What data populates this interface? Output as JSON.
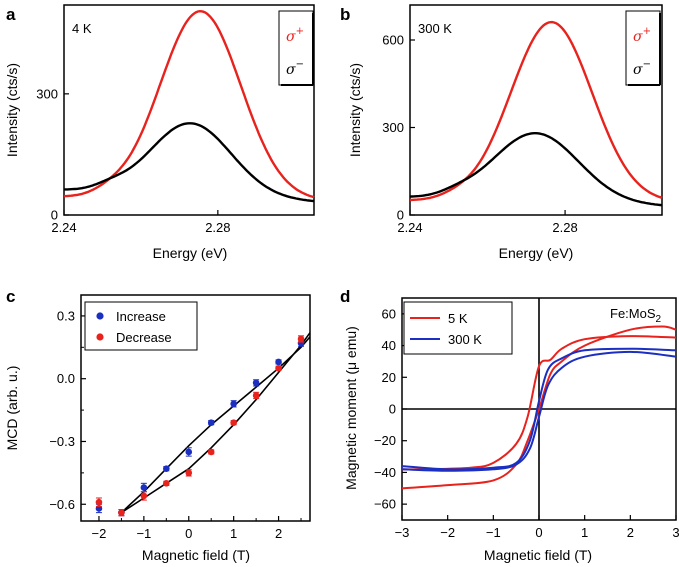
{
  "panels": {
    "a": "a",
    "b": "b",
    "c": "c",
    "d": "d"
  },
  "colors": {
    "red": "#e8221d",
    "black": "#000000",
    "blue": "#1b2fc1"
  },
  "chart_data": [
    {
      "id": "a",
      "type": "line",
      "annotation": "4 K",
      "xlabel": "Energy (eV)",
      "ylabel": "Intensity (cts/s)",
      "xlim": [
        2.24,
        2.305
      ],
      "ylim": [
        0,
        520
      ],
      "xticks": [
        2.24,
        2.28
      ],
      "xtick_labels": [
        "2.24",
        "2.28"
      ],
      "yticks": [
        0,
        300
      ],
      "ytick_labels": [
        "0",
        "300"
      ],
      "legend": [
        {
          "name": "σ+",
          "base": "σ",
          "sup": "+",
          "color": "#e8221d"
        },
        {
          "name": "σ−",
          "base": "σ",
          "sup": "−",
          "color": "#000000"
        }
      ],
      "series": [
        {
          "name": "σ+",
          "color": "#e8221d",
          "peak": 2.2755,
          "amplitude": 465,
          "sigma": 0.0105,
          "baseline": 45,
          "base_slope": -300
        },
        {
          "name": "σ−",
          "color": "#000000",
          "peak": 2.273,
          "amplitude": 180,
          "sigma": 0.0105,
          "baseline": 62,
          "base_slope": -900
        }
      ]
    },
    {
      "id": "b",
      "type": "line",
      "annotation": "300 K",
      "xlabel": "Energy (eV)",
      "ylabel": "Intensity (cts/s)",
      "xlim": [
        2.24,
        2.305
      ],
      "ylim": [
        0,
        720
      ],
      "xticks": [
        2.24,
        2.28
      ],
      "xtick_labels": [
        "2.24",
        "2.28"
      ],
      "yticks": [
        0,
        300,
        600
      ],
      "ytick_labels": [
        "0",
        "300",
        "600"
      ],
      "legend": [
        {
          "name": "σ+",
          "base": "σ",
          "sup": "+",
          "color": "#e8221d"
        },
        {
          "name": "σ−",
          "base": "σ",
          "sup": "−",
          "color": "#000000"
        }
      ],
      "series": [
        {
          "name": "σ+",
          "color": "#e8221d",
          "peak": 2.2765,
          "amplitude": 615,
          "sigma": 0.0105,
          "baseline": 50,
          "base_slope": -200
        },
        {
          "name": "σ−",
          "color": "#000000",
          "peak": 2.2725,
          "amplitude": 235,
          "sigma": 0.011,
          "baseline": 60,
          "base_slope": -900
        }
      ]
    },
    {
      "id": "c",
      "type": "scatter",
      "xlabel": "Magnetic field (T)",
      "ylabel": "MCD (arb. u.)",
      "xlim": [
        -2.4,
        2.7
      ],
      "ylim": [
        -0.68,
        0.4
      ],
      "xticks": [
        -2,
        -1,
        0,
        1,
        2
      ],
      "xtick_labels": [
        "−2",
        "−1",
        "0",
        "1",
        "2"
      ],
      "yticks": [
        -0.6,
        -0.3,
        0.0,
        0.3
      ],
      "ytick_labels": [
        "−0.6",
        "−0.3",
        "0.0",
        "0.3"
      ],
      "legend": [
        {
          "name": "Increase",
          "color": "#1b2fc1"
        },
        {
          "name": "Decrease",
          "color": "#e8221d"
        }
      ],
      "series": [
        {
          "name": "Increase",
          "color": "#1b2fc1",
          "x": [
            -2,
            -1.5,
            -1,
            -0.5,
            0,
            0.5,
            1,
            1.5,
            2,
            2.5
          ],
          "y": [
            -0.62,
            -0.64,
            -0.52,
            -0.43,
            -0.35,
            -0.21,
            -0.12,
            -0.02,
            0.08,
            0.17
          ],
          "err": [
            0.02,
            0.015,
            0.02,
            0.01,
            0.02,
            0.01,
            0.015,
            0.015,
            0.01,
            0.015
          ]
        },
        {
          "name": "Decrease",
          "color": "#e8221d",
          "x": [
            -2,
            -1.5,
            -1,
            -0.5,
            0,
            0.5,
            1,
            1.5,
            2,
            2.5
          ],
          "y": [
            -0.59,
            -0.64,
            -0.56,
            -0.5,
            -0.45,
            -0.35,
            -0.21,
            -0.08,
            0.05,
            0.19
          ],
          "err": [
            0.02,
            0.015,
            0.02,
            0.01,
            0.015,
            0.01,
            0.01,
            0.015,
            0.01,
            0.015
          ]
        }
      ],
      "fit_curves": [
        {
          "x": [
            -1.5,
            -1,
            -0.5,
            0,
            0.5,
            1,
            1.5,
            2,
            2.5,
            2.7
          ],
          "y": [
            -0.64,
            -0.54,
            -0.43,
            -0.32,
            -0.22,
            -0.13,
            -0.04,
            0.05,
            0.15,
            0.2
          ]
        },
        {
          "x": [
            -1.5,
            -1,
            -0.5,
            0,
            0.5,
            1,
            1.5,
            2,
            2.5,
            2.7
          ],
          "y": [
            -0.64,
            -0.57,
            -0.5,
            -0.43,
            -0.33,
            -0.22,
            -0.1,
            0.03,
            0.16,
            0.22
          ]
        }
      ]
    },
    {
      "id": "d",
      "type": "line",
      "annotation": "Fe:MoS",
      "annotation_sub": "2",
      "xlabel": "Magnetic field (T)",
      "ylabel": "Magnetic moment (μ emu)",
      "xlim": [
        -3,
        3
      ],
      "ylim": [
        -70,
        70
      ],
      "xticks": [
        -3,
        -2,
        -1,
        0,
        1,
        2,
        3
      ],
      "xtick_labels": [
        "−3",
        "−2",
        "−1",
        "0",
        "1",
        "2",
        "3"
      ],
      "yticks": [
        -60,
        -40,
        -20,
        0,
        20,
        40,
        60
      ],
      "ytick_labels": [
        "−60",
        "−40",
        "−20",
        "0",
        "20",
        "40",
        "60"
      ],
      "legend": [
        {
          "name": "5 K",
          "color": "#e8221d"
        },
        {
          "name": "300 K",
          "color": "#1b2fc1"
        }
      ],
      "series": [
        {
          "name": "5 K",
          "color": "#e8221d",
          "upper": {
            "x": [
              -3,
              -2.5,
              -1.5,
              -1,
              -0.5,
              -0.25,
              0,
              0.25,
              0.5,
              1,
              2,
              3
            ],
            "y": [
              -38,
              -38,
              -37,
              -34,
              -22,
              -5,
              27,
              31,
              38,
              44,
              46,
              45
            ]
          },
          "lower": {
            "x": [
              -3,
              -2,
              -1,
              -0.5,
              -0.25,
              0,
              0.25,
              0.5,
              1,
              2,
              2.7,
              3
            ],
            "y": [
              -50,
              -48,
              -45,
              -35,
              -20,
              0,
              22,
              30,
              40,
              50,
              52,
              50
            ]
          }
        },
        {
          "name": "300 K",
          "color": "#1b2fc1",
          "upper": {
            "x": [
              -3,
              -2,
              -1,
              -0.5,
              -0.2,
              0,
              0.2,
              0.5,
              1,
              2,
              3
            ],
            "y": [
              -36,
              -38,
              -37,
              -34,
              -20,
              5,
              25,
              32,
              37,
              38,
              37
            ]
          },
          "lower": {
            "x": [
              -3,
              -2,
              -1,
              -0.5,
              -0.2,
              0,
              0.2,
              0.5,
              1,
              2,
              3
            ],
            "y": [
              -38,
              -39,
              -38,
              -35,
              -25,
              -5,
              15,
              26,
              33,
              36,
              33
            ]
          }
        }
      ]
    }
  ]
}
